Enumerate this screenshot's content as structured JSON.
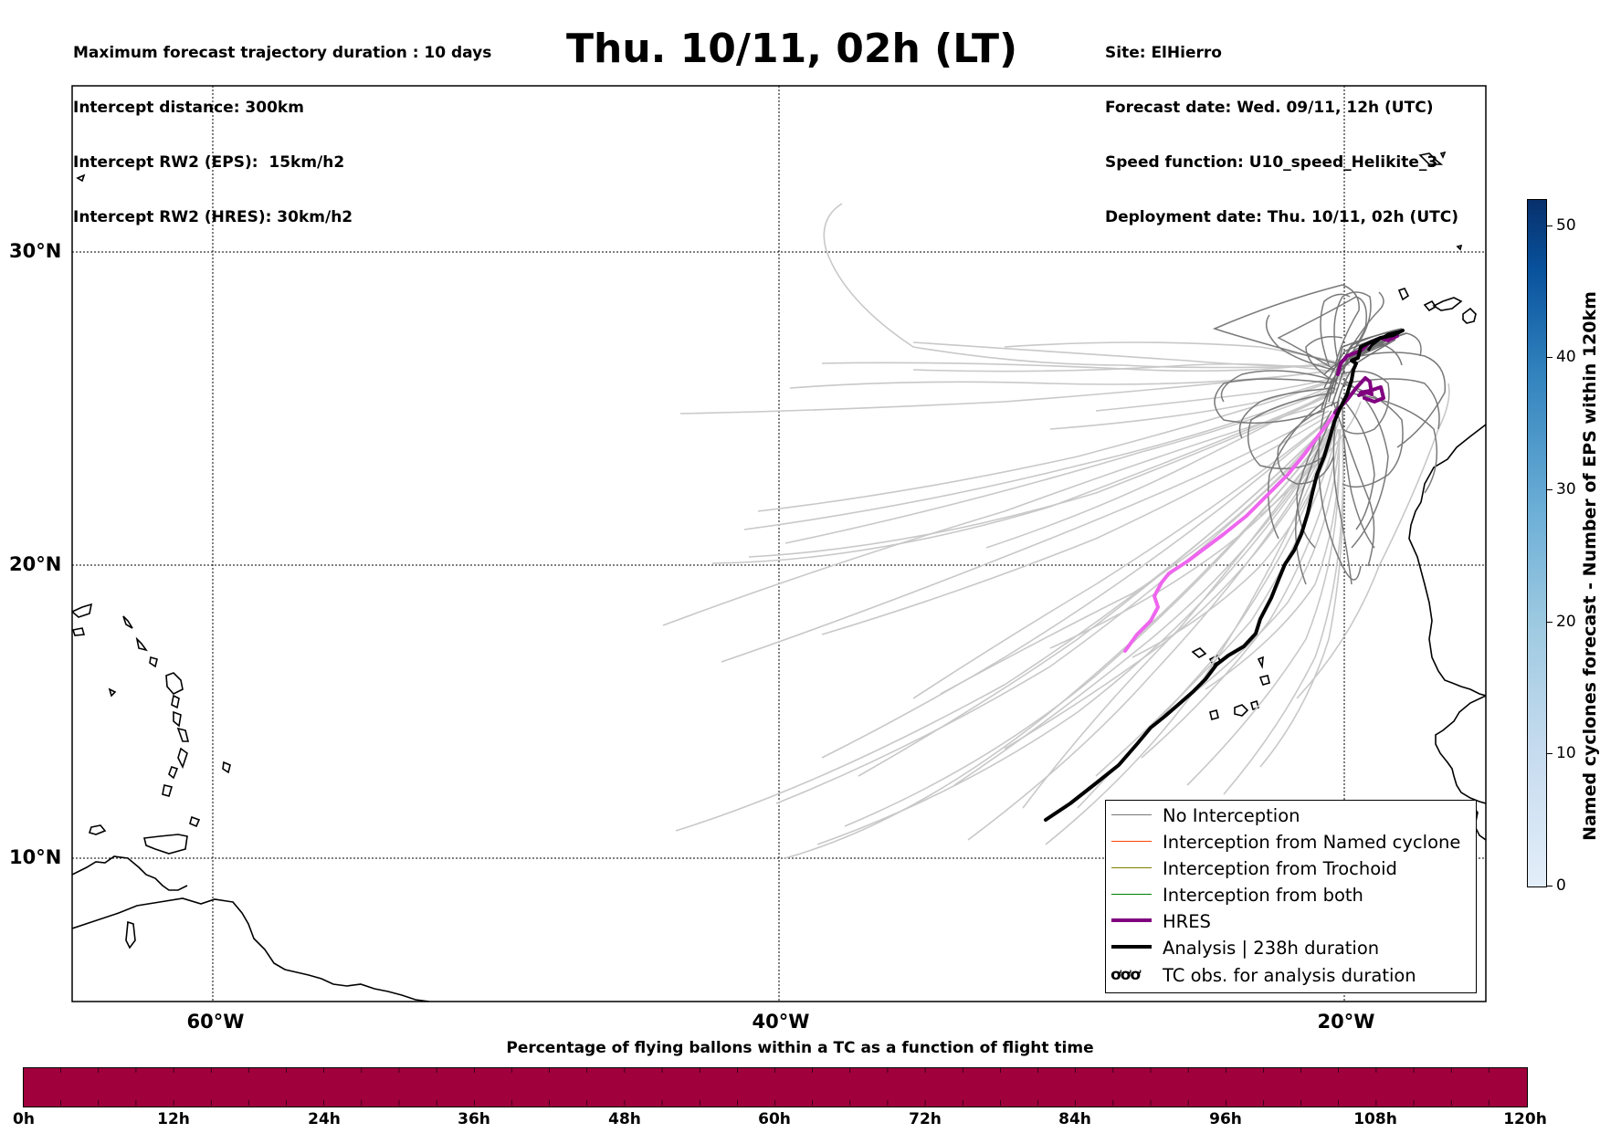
{
  "header_left": [
    "Maximum forecast trajectory duration : 10 days",
    "Intercept distance: 300km",
    "Intercept RW2 (EPS):  15km/h2",
    "Intercept RW2 (HRES): 30km/h2"
  ],
  "title": "Thu. 10/11, 02h (LT)",
  "header_right": [
    "Site: ElHierro",
    "Forecast date: Wed. 09/11, 12h (UTC)",
    "Speed function: U10_speed_Helikite_3",
    "Deployment date: Thu. 10/11, 02h (UTC)"
  ],
  "map": {
    "lat_labels": [
      "30°N",
      "20°N",
      "10°N"
    ],
    "lon_labels": [
      "60°W",
      "40°W",
      "20°W"
    ],
    "grid": true
  },
  "legend": {
    "items": [
      {
        "label": "No Interception",
        "color": "#777777"
      },
      {
        "label": "Interception from Named cyclone",
        "color": "#ff4500"
      },
      {
        "label": "Interception from Trochoid",
        "color": "#808000"
      },
      {
        "label": "Interception from both",
        "color": "#008000"
      },
      {
        "label": "HRES",
        "color": "#800080"
      },
      {
        "label": "Analysis | 238h duration",
        "color": "#000000"
      },
      {
        "label": "TC obs. for analysis duration",
        "symbol": "ơơơ"
      }
    ]
  },
  "colorbar": {
    "title": "Named cyclones forecast - Number of EPS within 120km",
    "ticks": [
      "0",
      "10",
      "20",
      "30",
      "40",
      "50"
    ],
    "range": [
      0,
      52
    ]
  },
  "hbar": {
    "title": "Percentage of flying ballons within a TC as a function of flight time",
    "ticks": [
      "0h",
      "12h",
      "24h",
      "36h",
      "48h",
      "60h",
      "72h",
      "84h",
      "96h",
      "108h",
      "120h"
    ],
    "color": "#a0003c"
  }
}
